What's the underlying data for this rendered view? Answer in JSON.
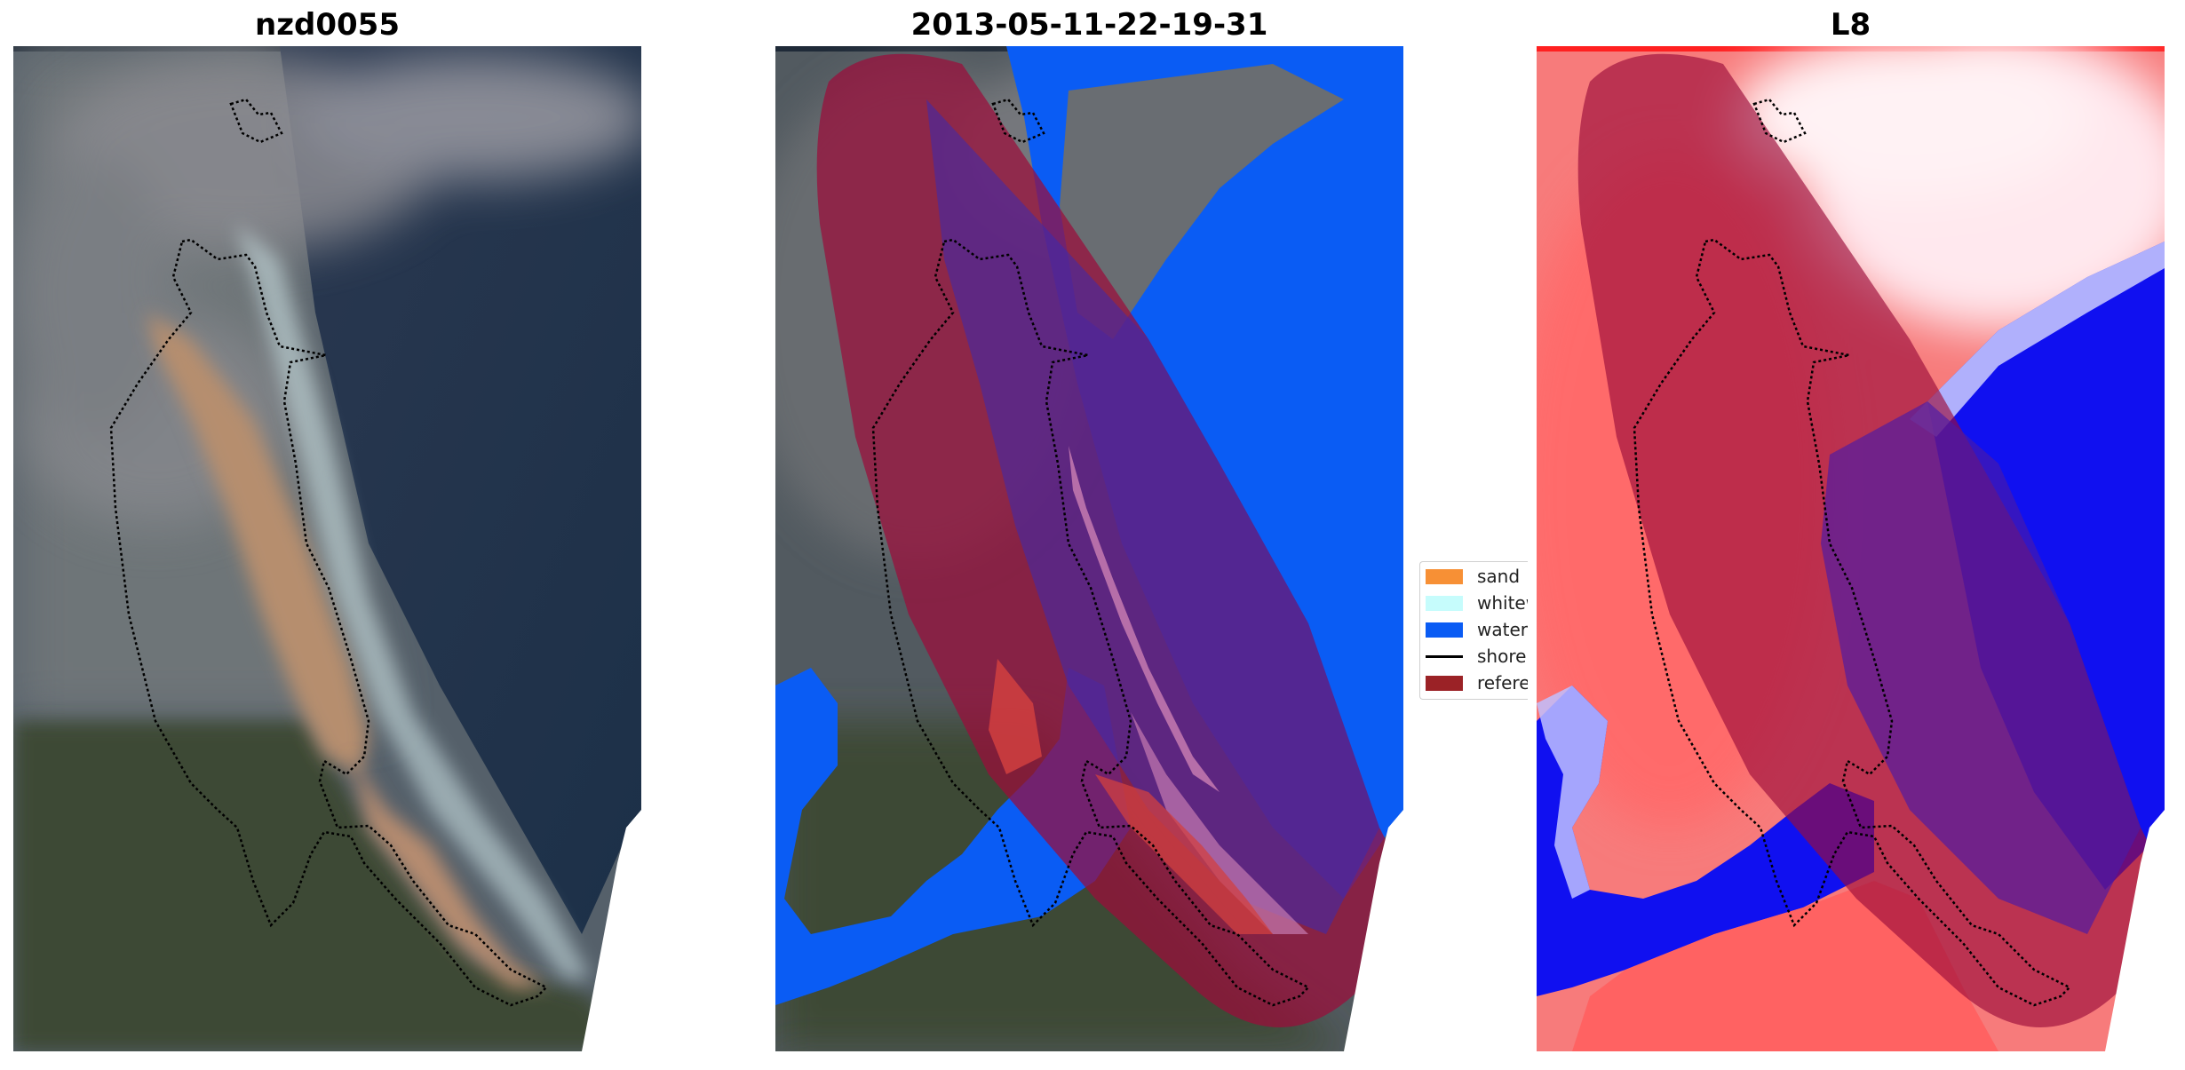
{
  "panels": [
    {
      "title": "nzd0055"
    },
    {
      "title": "2013-05-11-22-19-31"
    },
    {
      "title": "L8"
    }
  ],
  "legend": [
    {
      "label": "sand",
      "color": "#f79035",
      "kind": "patch"
    },
    {
      "label": "whitewater",
      "color": "#c6fcfc",
      "kind": "patch"
    },
    {
      "label": "water",
      "color": "#0a5cf4",
      "kind": "patch"
    },
    {
      "label": "shoreline",
      "color": "#000000",
      "kind": "line"
    },
    {
      "label": "reference shoreline buffer",
      "color": "#9b2226",
      "kind": "patch"
    }
  ],
  "colors": {
    "buffer": "#9b0d3a",
    "water_class": "#0a5cf4",
    "shoreline": "#000000",
    "cmap_land": "#ff3030",
    "cmap_water": "#0000f0"
  }
}
